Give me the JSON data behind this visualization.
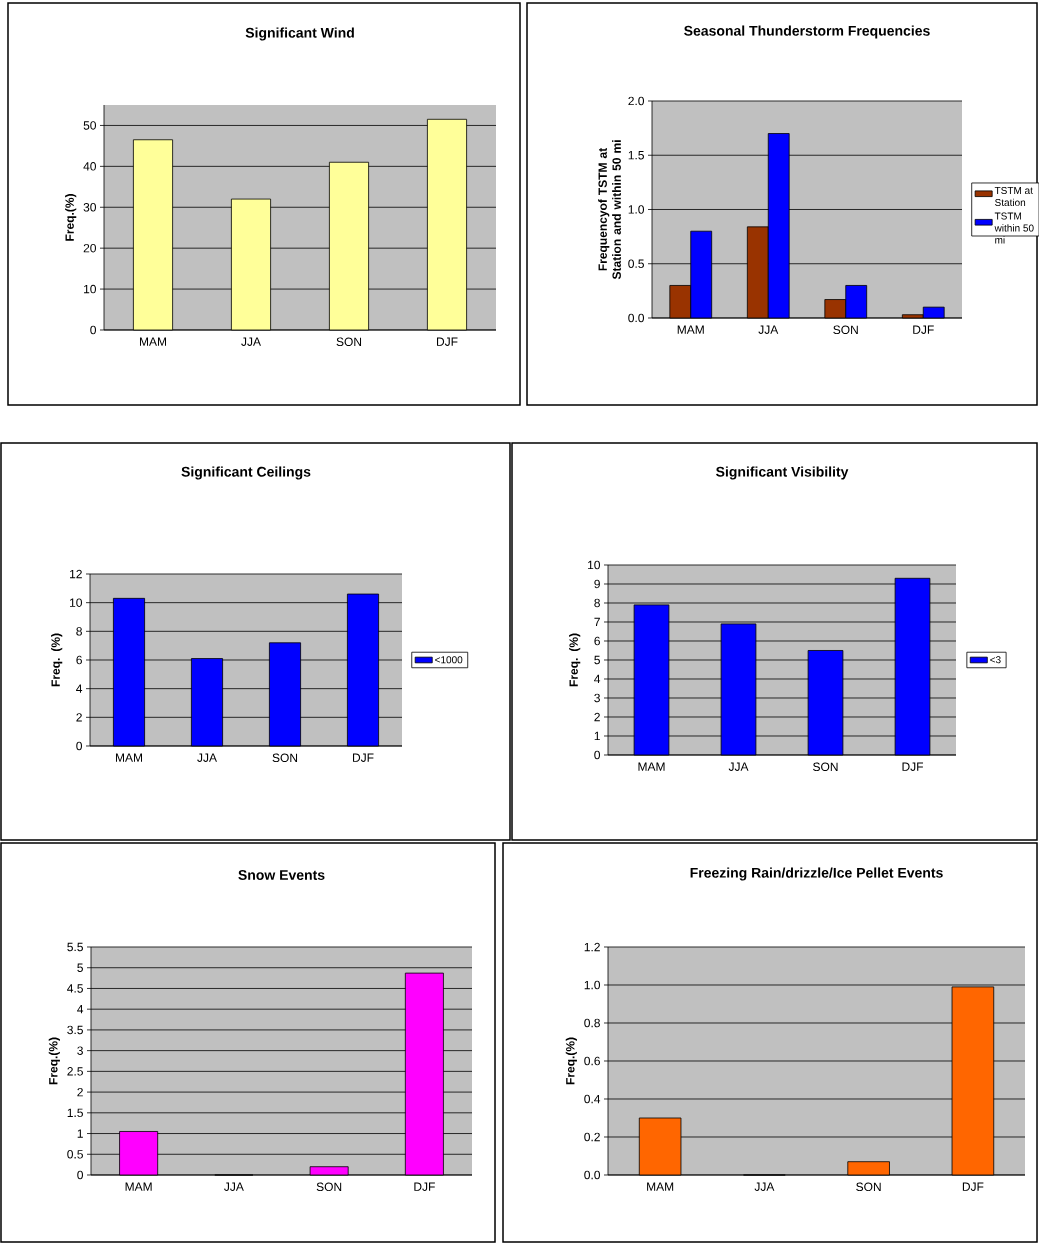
{
  "chart_data": [
    {
      "type": "bar",
      "title": "Significant Wind",
      "ylabel": "Freq.(%)",
      "categories": [
        "MAM",
        "JJA",
        "SON",
        "DJF"
      ],
      "values": [
        46.5,
        32,
        41,
        51.5
      ],
      "color": "#ffff99",
      "ylim": [
        0,
        55
      ],
      "yticks": [
        0,
        10,
        20,
        30,
        40,
        50
      ],
      "grid": "y"
    },
    {
      "type": "bar",
      "title": "Seasonal Thunderstorm Frequencies",
      "ylabel": "Frequencyof TSTM at Station and within 50 mi",
      "categories": [
        "MAM",
        "JJA",
        "SON",
        "DJF"
      ],
      "series": [
        {
          "name": "TSTM at Station",
          "color": "#993300",
          "values": [
            0.3,
            0.84,
            0.17,
            0.03
          ]
        },
        {
          "name": "TSTM within 50 mi",
          "color": "#0000ff",
          "values": [
            0.8,
            1.7,
            0.3,
            0.1
          ]
        }
      ],
      "ylim": [
        0,
        2
      ],
      "yticks": [
        {
          "value": 0,
          "label": "0.0"
        },
        {
          "value": 0.5,
          "label": "0.5"
        },
        {
          "value": 1,
          "label": "1.0"
        },
        {
          "value": 1.5,
          "label": "1.5"
        },
        {
          "value": 2,
          "label": "2.0"
        }
      ],
      "grid": "y",
      "legend": "right"
    },
    {
      "type": "bar",
      "title": "Significant Ceilings",
      "ylabel": "Freq. (%)",
      "categories": [
        "MAM",
        "JJA",
        "SON",
        "DJF"
      ],
      "series": [
        {
          "name": "<1000",
          "color": "#0000ff",
          "values": [
            10.3,
            6.1,
            7.2,
            10.6
          ]
        }
      ],
      "ylim": [
        0,
        12
      ],
      "yticks": [
        0,
        2,
        4,
        6,
        8,
        10,
        12
      ],
      "grid": "y",
      "legend": "right"
    },
    {
      "type": "bar",
      "title": "Significant Visibility",
      "ylabel": "Freq. (%)",
      "categories": [
        "MAM",
        "JJA",
        "SON",
        "DJF"
      ],
      "series": [
        {
          "name": "<3",
          "color": "#0000ff",
          "values": [
            7.9,
            6.9,
            5.5,
            9.3
          ]
        }
      ],
      "ylim": [
        0,
        10
      ],
      "yticks": [
        0,
        1,
        2,
        3,
        4,
        5,
        6,
        7,
        8,
        9,
        10
      ],
      "grid": "y",
      "legend": "right"
    },
    {
      "type": "bar",
      "title": "Snow Events",
      "ylabel": "Freq.(%)",
      "categories": [
        "MAM",
        "JJA",
        "SON",
        "DJF"
      ],
      "values": [
        1.05,
        0,
        0.2,
        4.87
      ],
      "color": "#ff00ff",
      "ylim": [
        0,
        5.5
      ],
      "yticks": [
        0,
        0.5,
        1,
        1.5,
        2,
        2.5,
        3,
        3.5,
        4,
        4.5,
        5,
        5.5
      ],
      "grid": "y"
    },
    {
      "type": "bar",
      "title": "Freezing Rain/drizzle/Ice Pellet Events",
      "ylabel": "Freq.(%)",
      "categories": [
        "MAM",
        "JJA",
        "SON",
        "DJF"
      ],
      "values": [
        0.3,
        0,
        0.07,
        0.99
      ],
      "color": "#ff6600",
      "ylim": [
        0,
        1.2
      ],
      "yticks": [
        {
          "value": 0,
          "label": "0.0"
        },
        {
          "value": 0.2,
          "label": "0.2"
        },
        {
          "value": 0.4,
          "label": "0.4"
        },
        {
          "value": 0.6,
          "label": "0.6"
        },
        {
          "value": 0.8,
          "label": "0.8"
        },
        {
          "value": 1,
          "label": "1.0"
        },
        {
          "value": 1.2,
          "label": "1.2"
        }
      ],
      "grid": "y"
    }
  ]
}
